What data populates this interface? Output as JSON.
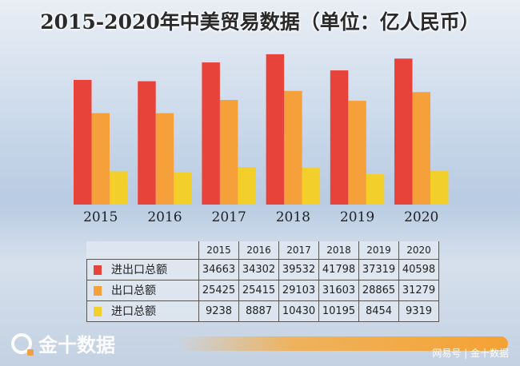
{
  "chart_data": {
    "type": "bar",
    "title": "2015-2020年中美贸易数据（单位：亿人民币）",
    "categories": [
      "2015",
      "2016",
      "2017",
      "2018",
      "2019",
      "2020"
    ],
    "series": [
      {
        "name": "进出口总额",
        "color": "#e8433a",
        "values": [
          34663,
          34302,
          39532,
          41798,
          37319,
          40598
        ]
      },
      {
        "name": "出口总额",
        "color": "#f5a03a",
        "values": [
          25425,
          25415,
          29103,
          31603,
          28865,
          31279
        ]
      },
      {
        "name": "进口总额",
        "color": "#f2cf2a",
        "values": [
          9238,
          8887,
          10430,
          10195,
          8454,
          9319
        ]
      }
    ],
    "legend": "table-below",
    "grid": false
  },
  "branding": {
    "logo": "金十数据",
    "watermark": "网易号 | 金十数据"
  }
}
